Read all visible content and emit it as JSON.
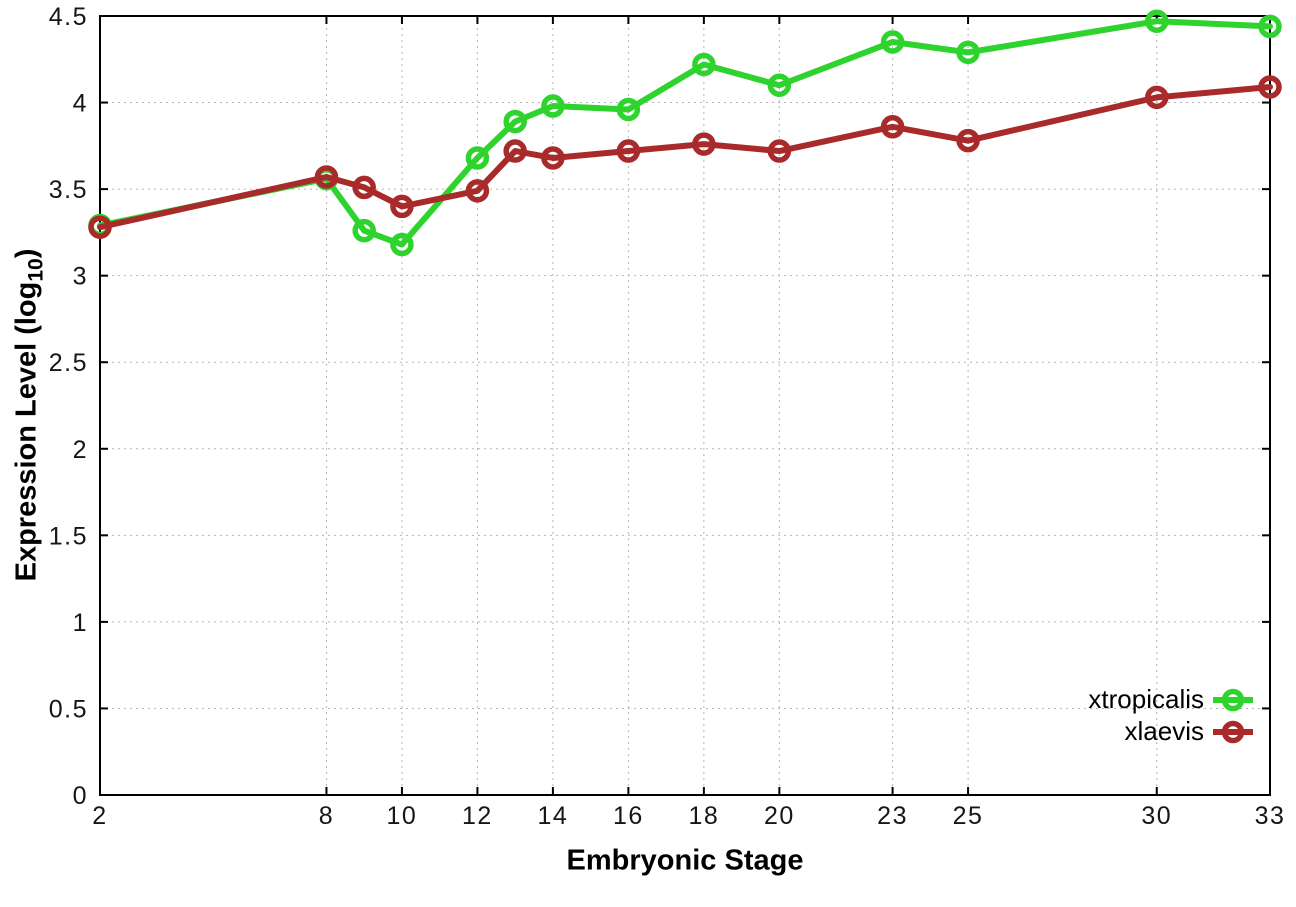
{
  "chart_data": {
    "type": "line",
    "title": "",
    "xlabel": "Embryonic Stage",
    "ylabel": "Expression Level (log10)",
    "ylabel_main": "Expression Level (log",
    "ylabel_sub": "10",
    "ylabel_end": ")",
    "xlim": [
      2,
      33
    ],
    "ylim": [
      0,
      4.5
    ],
    "grid": true,
    "legend_position": "bottom-right",
    "marker": "open-circle",
    "x": [
      2,
      8,
      9,
      10,
      12,
      13,
      14,
      16,
      18,
      20,
      23,
      25,
      30,
      33
    ],
    "xticks": [
      2,
      8,
      10,
      12,
      14,
      16,
      18,
      20,
      23,
      25,
      30,
      33
    ],
    "xtick_labels": [
      "2",
      "8",
      "10",
      "12",
      "14",
      "16",
      "18",
      "20",
      "23",
      "25",
      "30",
      "33"
    ],
    "yticks": [
      0,
      0.5,
      1,
      1.5,
      2,
      2.5,
      3,
      3.5,
      4,
      4.5
    ],
    "ytick_labels": [
      "0",
      "0.5",
      "1",
      "1.5",
      "2",
      "2.5",
      "3",
      "3.5",
      "4",
      "4.5"
    ],
    "series": [
      {
        "name": "xtropicalis",
        "color": "#2ed32e",
        "values": [
          3.29,
          3.56,
          3.26,
          3.18,
          3.68,
          3.89,
          3.98,
          3.96,
          4.22,
          4.1,
          4.35,
          4.29,
          4.47,
          4.44
        ]
      },
      {
        "name": "xlaevis",
        "color": "#a82a2a",
        "values": [
          3.28,
          3.57,
          3.51,
          3.4,
          3.49,
          3.72,
          3.68,
          3.72,
          3.76,
          3.72,
          3.86,
          3.78,
          4.03,
          4.09
        ]
      }
    ],
    "colors": {
      "axis": "#000000",
      "grid": "#b5b5b5",
      "text": "#161616"
    }
  }
}
